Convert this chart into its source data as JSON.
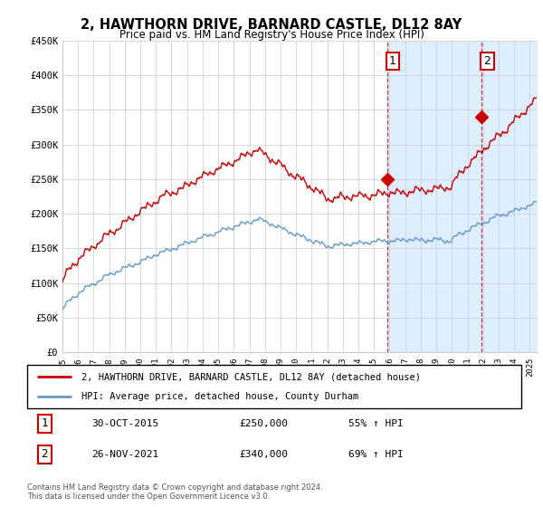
{
  "title": "2, HAWTHORN DRIVE, BARNARD CASTLE, DL12 8AY",
  "subtitle": "Price paid vs. HM Land Registry's House Price Index (HPI)",
  "ylabel_ticks": [
    "£0",
    "£50K",
    "£100K",
    "£150K",
    "£200K",
    "£250K",
    "£300K",
    "£350K",
    "£400K",
    "£450K"
  ],
  "ytick_vals": [
    0,
    50000,
    100000,
    150000,
    200000,
    250000,
    300000,
    350000,
    400000,
    450000
  ],
  "ylim": [
    0,
    450000
  ],
  "xlim_start": 1995.0,
  "xlim_end": 2025.5,
  "sale1_x": 2015.83,
  "sale1_y": 250000,
  "sale2_x": 2021.9,
  "sale2_y": 340000,
  "red_line_color": "#cc0000",
  "blue_line_color": "#6699cc",
  "shade_color": "#ddeeff",
  "legend_line1": "2, HAWTHORN DRIVE, BARNARD CASTLE, DL12 8AY (detached house)",
  "legend_line2": "HPI: Average price, detached house, County Durham",
  "table_row1": [
    "1",
    "30-OCT-2015",
    "£250,000",
    "55% ↑ HPI"
  ],
  "table_row2": [
    "2",
    "26-NOV-2021",
    "£340,000",
    "69% ↑ HPI"
  ],
  "footer": "Contains HM Land Registry data © Crown copyright and database right 2024.\nThis data is licensed under the Open Government Licence v3.0.",
  "background_color": "#ffffff",
  "grid_color": "#cccccc"
}
